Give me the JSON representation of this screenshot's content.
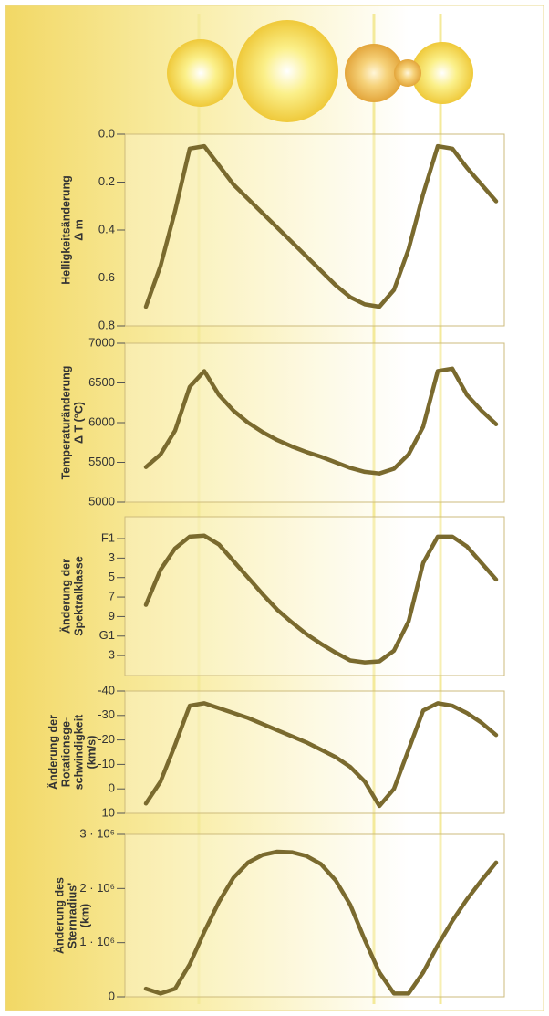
{
  "chart_data": [
    {
      "type": "line",
      "ylabel": [
        "Helligkeitsänderung",
        "Δ m"
      ],
      "color": "#7a6a2e",
      "values": [
        0.72,
        0.55,
        0.32,
        0.06,
        0.05,
        0.13,
        0.21,
        0.27,
        0.33,
        0.39,
        0.45,
        0.51,
        0.57,
        0.63,
        0.68,
        0.71,
        0.72,
        0.65,
        0.48,
        0.25,
        0.05,
        0.06,
        0.14,
        0.21,
        0.28
      ],
      "ylim": [
        0.8,
        0.0
      ],
      "yticks": [
        {
          "value": 0.0,
          "label": "0.0"
        },
        0.2,
        0.4,
        0.6,
        0.8
      ]
    },
    {
      "type": "line",
      "ylabel": [
        "Temperaturänderung",
        "Δ T (°C)"
      ],
      "color": "#7a6a2e",
      "values": [
        5440,
        5600,
        5900,
        6450,
        6650,
        6350,
        6150,
        6000,
        5880,
        5780,
        5700,
        5630,
        5570,
        5500,
        5430,
        5380,
        5360,
        5420,
        5600,
        5950,
        6650,
        6680,
        6350,
        6150,
        5980
      ],
      "ylim": [
        5000,
        7000
      ],
      "yticks": [
        5000,
        5500,
        6000,
        6500,
        7000
      ]
    },
    {
      "type": "line",
      "ylabel": [
        "Änderung der",
        "Spektralklasse"
      ],
      "color": "#7a6a2e",
      "values": [
        7.8,
        4.2,
        2.0,
        0.8,
        0.7,
        1.6,
        3.3,
        5.0,
        6.7,
        8.3,
        9.6,
        10.8,
        11.8,
        12.7,
        13.5,
        13.7,
        13.6,
        12.5,
        9.5,
        3.5,
        0.8,
        0.8,
        1.8,
        3.5,
        5.2
      ],
      "ylim": [
        15.05,
        -1.25
      ],
      "yticks": [
        {
          "value": 1,
          "label": "F1"
        },
        3,
        5,
        7,
        9,
        {
          "value": 11,
          "label": "G1"
        },
        {
          "value": 13,
          "label": "3"
        }
      ]
    },
    {
      "type": "line",
      "ylabel": [
        "Änderung der",
        "Rotationsge-",
        "schwindigkeit",
        "(km/s)"
      ],
      "color": "#7a6a2e",
      "values": [
        6,
        -3,
        -18,
        -34,
        -35,
        -33,
        -31,
        -29,
        -26.5,
        -24,
        -21.5,
        -19,
        -16,
        -13,
        -9,
        -3,
        7,
        0,
        -16,
        -32,
        -35,
        -34,
        -31,
        -27,
        -22
      ],
      "ylim": [
        10,
        -40
      ],
      "yticks": [
        -40,
        -30,
        -20,
        -10,
        0,
        10
      ]
    },
    {
      "type": "line",
      "ylabel": [
        "Änderung des",
        "Sternradius'",
        "(km)"
      ],
      "color": "#7a6a2e",
      "values": [
        150000,
        60000,
        150000,
        600000,
        1200000,
        1750000,
        2200000,
        2480000,
        2620000,
        2680000,
        2670000,
        2600000,
        2450000,
        2150000,
        1700000,
        1050000,
        450000,
        60000,
        60000,
        450000,
        950000,
        1400000,
        1800000,
        2150000,
        2480000
      ],
      "ylim": [
        0,
        3000000
      ],
      "yticks": [
        0,
        {
          "value": 1000000,
          "label": "1 · 10⁶"
        },
        {
          "value": 2000000,
          "label": "2 · 10⁶"
        },
        {
          "value": 3000000,
          "label": "3 · 10⁶"
        }
      ]
    }
  ]
}
